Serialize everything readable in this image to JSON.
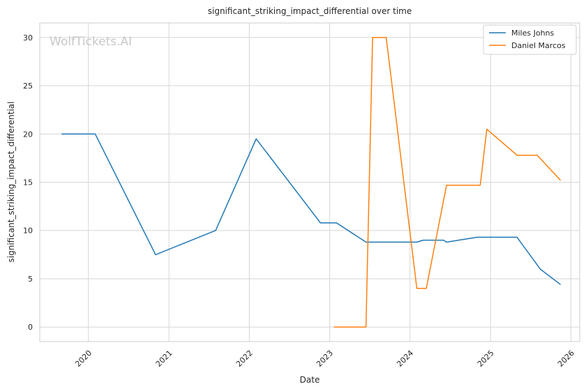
{
  "chart_data": {
    "type": "line",
    "title": "significant_striking_impact_differential over time",
    "xlabel": "Date",
    "ylabel": "significant_striking_impact_differential",
    "watermark": "WolfTickets.AI",
    "x_ticks": [
      "2020",
      "2021",
      "2022",
      "2023",
      "2024",
      "2025",
      "2026"
    ],
    "y_ticks": [
      0,
      5,
      10,
      15,
      20,
      25,
      30
    ],
    "xlim": [
      "2019-05-25",
      "2026-02-10"
    ],
    "ylim": [
      -1.5,
      31.5
    ],
    "grid": true,
    "legend_position": "top-right",
    "series": [
      {
        "name": "Miles Johns",
        "color": "#1f77b4",
        "points": [
          [
            "2019-09-01",
            20.0
          ],
          [
            "2020-02-01",
            20.0
          ],
          [
            "2020-11-01",
            7.5
          ],
          [
            "2021-08-01",
            10.0
          ],
          [
            "2022-02-01",
            19.5
          ],
          [
            "2022-11-20",
            10.8
          ],
          [
            "2023-02-01",
            10.8
          ],
          [
            "2023-06-15",
            8.8
          ],
          [
            "2024-02-01",
            8.8
          ],
          [
            "2024-03-01",
            9.0
          ],
          [
            "2024-06-01",
            9.0
          ],
          [
            "2024-06-15",
            8.8
          ],
          [
            "2024-11-01",
            9.3
          ],
          [
            "2025-05-01",
            9.3
          ],
          [
            "2025-08-15",
            6.0
          ],
          [
            "2025-11-15",
            4.4
          ]
        ]
      },
      {
        "name": "Daniel Marcos",
        "color": "#ff7f0e",
        "points": [
          [
            "2023-01-20",
            0.0
          ],
          [
            "2023-06-15",
            0.0
          ],
          [
            "2023-07-15",
            30.0
          ],
          [
            "2023-09-15",
            30.0
          ],
          [
            "2024-02-01",
            4.0
          ],
          [
            "2024-03-15",
            4.0
          ],
          [
            "2024-06-15",
            14.7
          ],
          [
            "2024-11-15",
            14.7
          ],
          [
            "2024-12-15",
            20.5
          ],
          [
            "2025-05-01",
            17.8
          ],
          [
            "2025-08-01",
            17.8
          ],
          [
            "2025-11-15",
            15.2
          ]
        ]
      }
    ]
  }
}
